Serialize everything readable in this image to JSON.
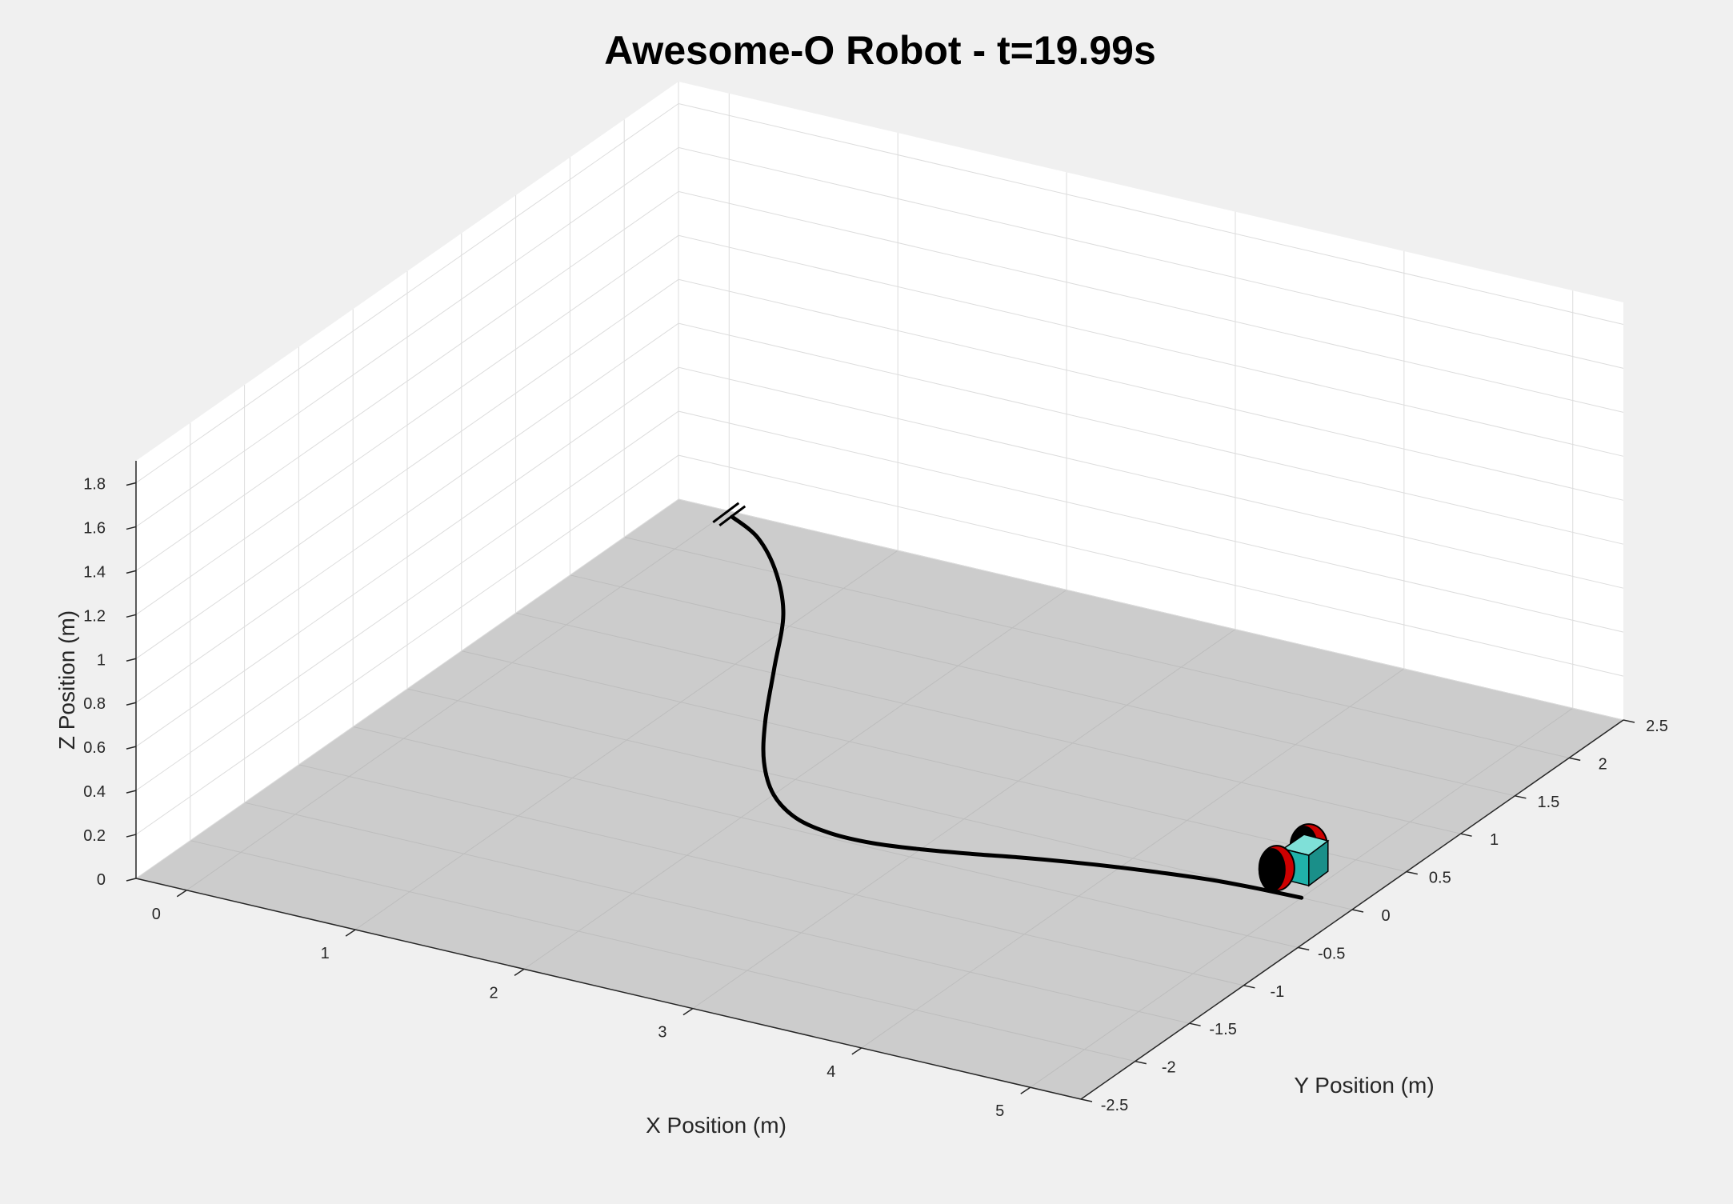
{
  "chart_data": {
    "type": "3d-line",
    "title": "Awesome-O Robot - t=19.99s",
    "xlabel": "X Position (m)",
    "ylabel": "Y Position (m)",
    "zlabel": "Z Position (m)",
    "xlim": [
      -0.3,
      5.3
    ],
    "ylim": [
      -2.5,
      2.5
    ],
    "zlim": [
      0,
      1.9
    ],
    "x_ticks": [
      0,
      1,
      2,
      3,
      4,
      5
    ],
    "x_tick_labels": [
      "0",
      "1",
      "2",
      "3",
      "4",
      "5"
    ],
    "y_ticks": [
      -2.5,
      -2,
      -1.5,
      -1,
      -0.5,
      0,
      0.5,
      1,
      1.5,
      2,
      2.5
    ],
    "y_tick_labels": [
      "-2.5",
      "-2",
      "-1.5",
      "-1",
      "-0.5",
      "0",
      "0.5",
      "1",
      "1.5",
      "2",
      "2.5"
    ],
    "z_ticks": [
      0,
      0.2,
      0.4,
      0.6,
      0.8,
      1,
      1.2,
      1.4,
      1.6,
      1.8
    ],
    "z_tick_labels": [
      "0",
      "0.2",
      "0.4",
      "0.6",
      "0.8",
      "1",
      "1.2",
      "1.4",
      "1.6",
      "1.8"
    ],
    "grid": true,
    "floor_color": "#cccccc",
    "axes_background": "#ffffff",
    "figure_background": "#f0f0f0",
    "series": [
      {
        "color": "#000000",
        "x": [
          0.05,
          0.3,
          0.6,
          0.9,
          1.2,
          1.5,
          1.75,
          2.0,
          2.25,
          2.5,
          2.75,
          3.0,
          3.25,
          3.5,
          3.75,
          4.0,
          4.25,
          4.5,
          4.75,
          5.0
        ],
        "y": [
          2.45,
          2.3,
          2.0,
          1.6,
          1.05,
          0.5,
          0.1,
          -0.2,
          -0.38,
          -0.45,
          -0.45,
          -0.4,
          -0.33,
          -0.25,
          -0.18,
          -0.12,
          -0.07,
          -0.03,
          -0.01,
          0.0
        ],
        "z": [
          0,
          0,
          0,
          0,
          0,
          0,
          0,
          0,
          0,
          0,
          0,
          0,
          0,
          0,
          0,
          0,
          0,
          0,
          0,
          0
        ]
      }
    ],
    "robot": {
      "position": [
        5.1,
        0.0,
        0.0
      ],
      "body_color": "#20b2aa",
      "wheel_color": "#000000",
      "wheel_accent_color": "#cc0000"
    },
    "start_marker_position": [
      0.0,
      2.5,
      0.0
    ]
  }
}
